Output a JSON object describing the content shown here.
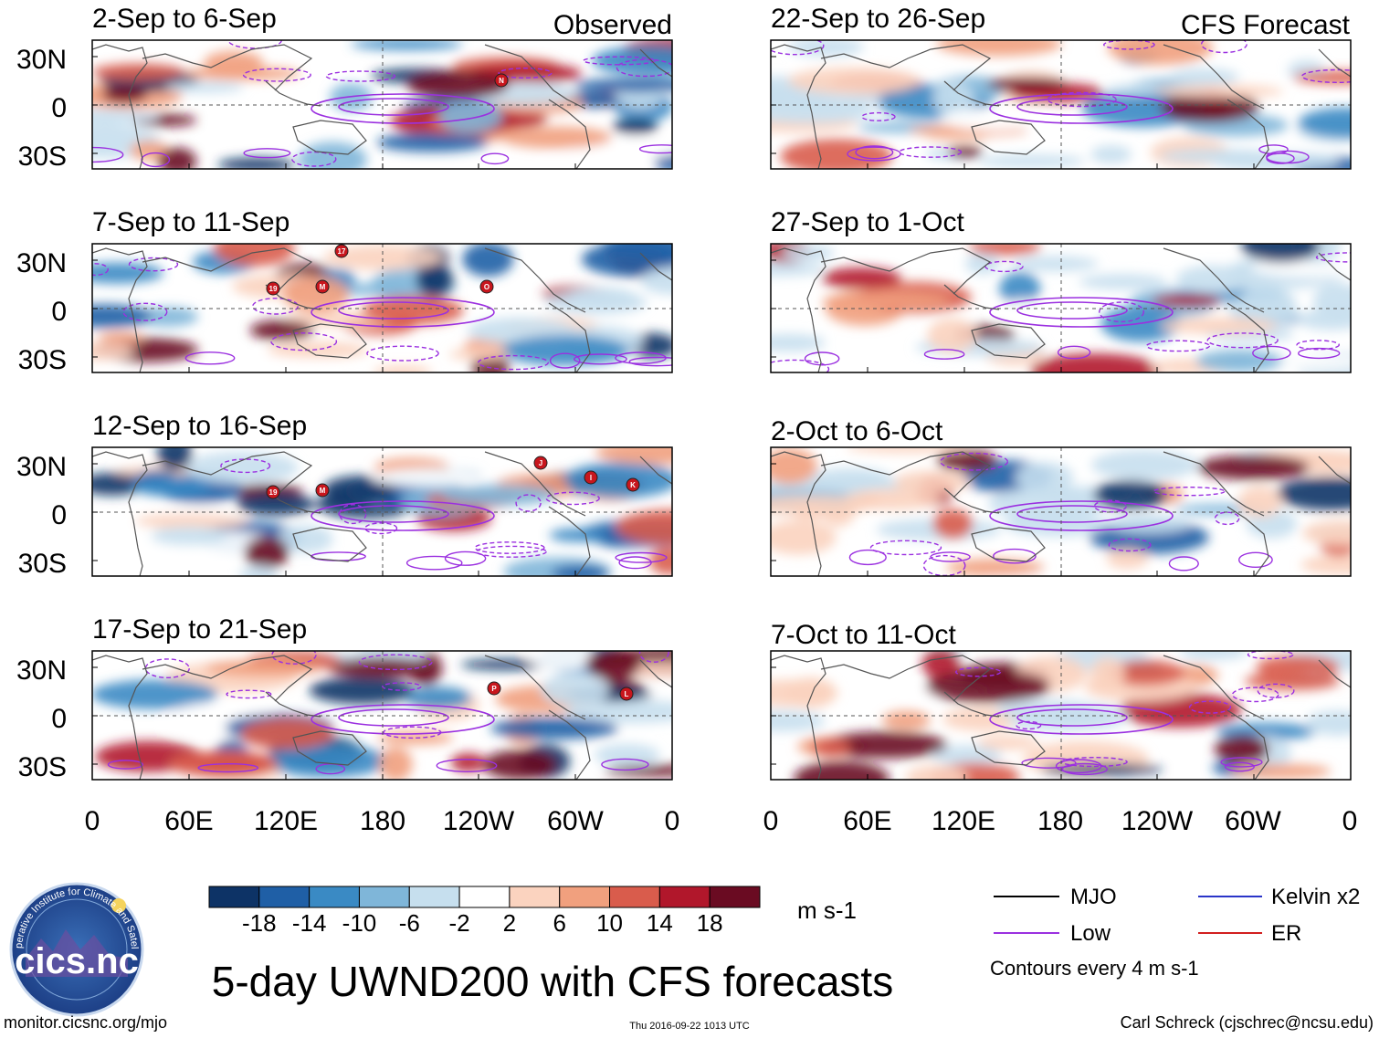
{
  "chart_data": {
    "type": "heatmap",
    "title": "5-day UWND200 with CFS forecasts",
    "variable": "UWND200",
    "units": "m s-1",
    "corner_labels": {
      "observed": "Observed",
      "forecast": "CFS Forecast"
    },
    "panels": [
      {
        "column": "observed",
        "period": "2-Sep to 6-Sep",
        "storms": [
          "N"
        ]
      },
      {
        "column": "observed",
        "period": "7-Sep to 11-Sep",
        "storms": [
          "17",
          "19",
          "M",
          "O"
        ]
      },
      {
        "column": "observed",
        "period": "12-Sep to 16-Sep",
        "storms": [
          "19",
          "M",
          "J",
          "I",
          "K"
        ]
      },
      {
        "column": "observed",
        "period": "17-Sep to 21-Sep",
        "storms": [
          "P",
          "L"
        ]
      },
      {
        "column": "forecast",
        "period": "22-Sep to 26-Sep",
        "storms": []
      },
      {
        "column": "forecast",
        "period": "27-Sep to 1-Oct",
        "storms": []
      },
      {
        "column": "forecast",
        "period": "2-Oct to 6-Oct",
        "storms": []
      },
      {
        "column": "forecast",
        "period": "7-Oct to 11-Oct",
        "storms": []
      }
    ],
    "xaxis": {
      "ticks": [
        "0",
        "60E",
        "120E",
        "180",
        "120W",
        "60W",
        "0"
      ]
    },
    "yaxis": {
      "ticks": [
        "30N",
        "0",
        "30S"
      ]
    },
    "colorbar": {
      "ticks": [
        "-18",
        "-14",
        "-10",
        "-6",
        "-2",
        "2",
        "6",
        "10",
        "14",
        "18"
      ],
      "colors": [
        "#0d3366",
        "#1f5fa6",
        "#3a8ac4",
        "#7fb6d9",
        "#c6dfee",
        "#ffffff",
        "#fbd3bf",
        "#f1a07e",
        "#d95c4c",
        "#b1172b",
        "#6a0b22"
      ]
    },
    "legend": [
      {
        "label": "MJO",
        "color": "#000000"
      },
      {
        "label": "Kelvin x2",
        "color": "#2a34c8"
      },
      {
        "label": "Low",
        "color": "#9b30e0"
      },
      {
        "label": "ER",
        "color": "#d21f1f"
      }
    ],
    "contour_note": "Contours every 4 m s-1"
  },
  "footer": {
    "left": "monitor.cicsnc.org/mjo",
    "center": "Thu 2016-09-22 1013 UTC",
    "right": "Carl Schreck (cjschrec@ncsu.edu)"
  },
  "logo": {
    "text": "cics.nc",
    "ring_text": "Cooperative Institute for Climate and Satellites"
  }
}
